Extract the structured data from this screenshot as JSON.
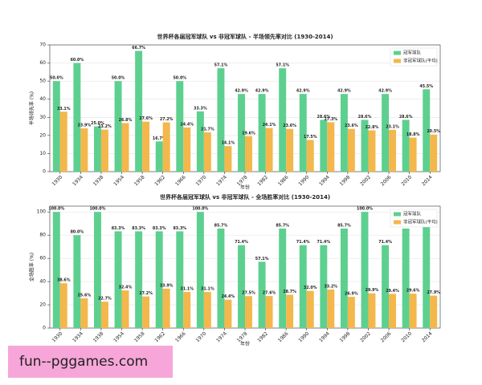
{
  "chart_data": [
    {
      "type": "bar",
      "title": "世界杯各届冠军球队 vs 非冠军球队 - 半场领先率对比 (1930-2014)",
      "x_label": "年份",
      "y_label": "半场领先率 (%)",
      "categories": [
        "1930",
        "1934",
        "1938",
        "1954",
        "1958",
        "1962",
        "1966",
        "1970",
        "1974",
        "1978",
        "1982",
        "1986",
        "1990",
        "1994",
        "1998",
        "2002",
        "2006",
        "2010",
        "2014"
      ],
      "series": [
        {
          "name": "冠军球队",
          "color": "#5dd08f",
          "values": [
            50.0,
            60.0,
            25.0,
            50.0,
            66.7,
            16.7,
            50.0,
            33.3,
            57.1,
            42.9,
            42.9,
            57.1,
            42.9,
            28.6,
            42.9,
            28.6,
            42.9,
            28.6,
            45.5
          ],
          "value_labels": [
            "50.0%",
            "60.0%",
            "25.0%",
            "50.0%",
            "66.7%",
            "16.7%",
            "50.0%",
            "33.3%",
            "57.1%",
            "42.9%",
            "42.9%",
            "57.1%",
            "42.9%",
            "28.6%",
            "42.9%",
            "28.6%",
            "42.9%",
            "28.6%",
            "45.5%"
          ]
        },
        {
          "name": "非冠军球队(平均)",
          "color": "#f3b74c",
          "values": [
            33.1,
            23.9,
            23.2,
            26.8,
            27.6,
            27.2,
            24.4,
            21.7,
            14.1,
            19.6,
            24.1,
            23.6,
            17.5,
            27.3,
            23.6,
            22.8,
            23.1,
            18.8,
            20.5
          ],
          "value_labels": [
            "33.1%",
            "23.9%",
            "23.2%",
            "26.8%",
            "27.6%",
            "27.2%",
            "24.4%",
            "21.7%",
            "14.1%",
            "19.6%",
            "24.1%",
            "23.6%",
            "17.5%",
            "27.3%",
            "23.6%",
            "22.8%",
            "23.1%",
            "18.8%",
            "20.5%"
          ]
        }
      ],
      "ylim": [
        0,
        70
      ],
      "yticks": [
        0,
        10,
        20,
        30,
        40,
        50,
        60,
        70
      ],
      "grid": true,
      "legend": "upper right"
    },
    {
      "type": "bar",
      "title": "世界杯各届冠军球队 vs 非冠军球队 - 全场胜率对比 (1930-2014)",
      "x_label": "年份",
      "y_label": "全场胜率 (%)",
      "categories": [
        "1930",
        "1934",
        "1938",
        "1954",
        "1958",
        "1962",
        "1966",
        "1970",
        "1974",
        "1978",
        "1982",
        "1986",
        "1990",
        "1994",
        "1998",
        "2002",
        "2006",
        "2010",
        "2014"
      ],
      "series": [
        {
          "name": "冠军球队",
          "color": "#5dd08f",
          "values": [
            100.0,
            80.0,
            100.0,
            83.3,
            83.3,
            83.3,
            83.3,
            100.0,
            85.7,
            71.4,
            57.1,
            85.7,
            71.4,
            71.4,
            85.7,
            100.0,
            71.4,
            85.7,
            90.9
          ],
          "value_labels": [
            "100.0%",
            "80.0%",
            "100.0%",
            "83.3%",
            "83.3%",
            "83.3%",
            "83.3%",
            "100.0%",
            "85.7%",
            "71.4%",
            "57.1%",
            "85.7%",
            "71.4%",
            "71.4%",
            "85.7%",
            "100.0%",
            "71.4%",
            "85.7%",
            "90.9%"
          ]
        },
        {
          "name": "非冠军球队(平均)",
          "color": "#f3b74c",
          "values": [
            38.6,
            25.6,
            22.7,
            32.4,
            27.2,
            33.9,
            31.1,
            31.1,
            24.4,
            27.5,
            27.6,
            28.7,
            32.0,
            33.2,
            26.9,
            29.9,
            29.4,
            29.6,
            27.9
          ],
          "value_labels": [
            "38.6%",
            "25.6%",
            "22.7%",
            "32.4%",
            "27.2%",
            "33.9%",
            "31.1%",
            "31.1%",
            "24.4%",
            "27.5%",
            "27.6%",
            "28.7%",
            "32.0%",
            "33.2%",
            "26.9%",
            "29.9%",
            "29.4%",
            "29.6%",
            "27.9%"
          ]
        }
      ],
      "ylim": [
        0,
        105
      ],
      "yticks": [
        0,
        20,
        40,
        60,
        80,
        100
      ],
      "grid": true,
      "legend": "upper right"
    }
  ],
  "watermark": "fun--pggames.com"
}
